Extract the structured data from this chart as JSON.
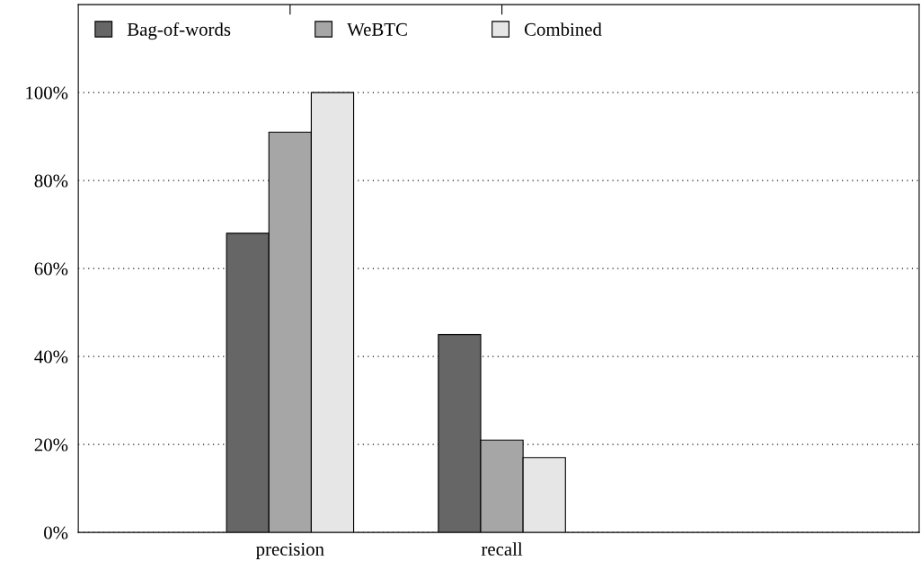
{
  "chart_data": {
    "type": "bar",
    "categories": [
      "precision",
      "recall"
    ],
    "series": [
      {
        "name": "Bag-of-words",
        "color": "#666666",
        "values": [
          68,
          45
        ]
      },
      {
        "name": "WeBTC",
        "color": "#a6a6a6",
        "values": [
          91,
          21
        ]
      },
      {
        "name": "Combined",
        "color": "#e6e6e6",
        "values": [
          100,
          17
        ]
      }
    ],
    "ylim": [
      0,
      120
    ],
    "yticks": [
      {
        "value": 0,
        "label": "0%"
      },
      {
        "value": 20,
        "label": "20%"
      },
      {
        "value": 40,
        "label": "40%"
      },
      {
        "value": 60,
        "label": "60%"
      },
      {
        "value": 80,
        "label": "80%"
      },
      {
        "value": 100,
        "label": "100%"
      }
    ],
    "grid": "y",
    "legend": "top left"
  }
}
